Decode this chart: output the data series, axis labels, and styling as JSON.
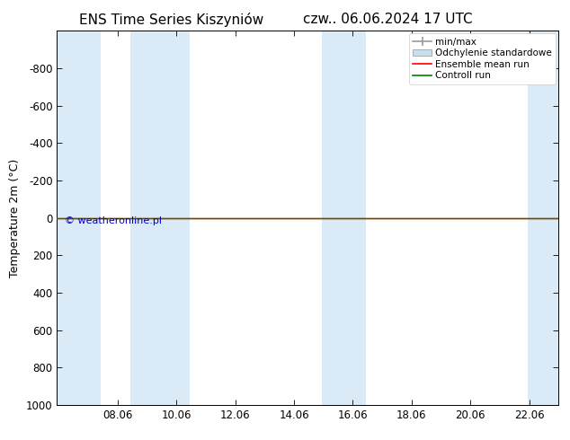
{
  "title_left": "ENS Time Series Kiszyniów",
  "title_right": "czw.. 06.06.2024 17 UTC",
  "ylabel": "Temperature 2m (°C)",
  "watermark": "© weatheronline.pl",
  "watermark_color": "#0000cc",
  "xlim_start": 6.0,
  "xlim_end": 23.06,
  "ylim_bottom": 1000,
  "ylim_top": -1000,
  "yticks": [
    -800,
    -600,
    -400,
    -200,
    0,
    200,
    400,
    600,
    800,
    1000
  ],
  "xticks": [
    8.06,
    10.06,
    12.06,
    14.06,
    16.06,
    18.06,
    20.06,
    22.06
  ],
  "xtick_labels": [
    "08.06",
    "10.06",
    "12.06",
    "14.06",
    "16.06",
    "18.06",
    "20.06",
    "22.06"
  ],
  "background_color": "#ffffff",
  "plot_bg_color": "#ffffff",
  "shaded_bands": [
    {
      "x_start": 6.0,
      "x_end": 7.5,
      "color": "#daeaf7"
    },
    {
      "x_start": 8.5,
      "x_end": 10.5,
      "color": "#daeaf7"
    },
    {
      "x_start": 15.0,
      "x_end": 16.5,
      "color": "#daeaf7"
    },
    {
      "x_start": 22.0,
      "x_end": 23.06,
      "color": "#daeaf7"
    }
  ],
  "hline_y": 0,
  "hline_color_ensemble": "#ff0000",
  "hline_color_control": "#008000",
  "legend_items": [
    {
      "label": "min/max",
      "color": "#aaaaaa",
      "style": "errbar"
    },
    {
      "label": "Odchylenie standardowe",
      "color": "#ccdeed",
      "style": "box"
    },
    {
      "label": "Ensemble mean run",
      "color": "#ff0000",
      "style": "line"
    },
    {
      "label": "Controll run",
      "color": "#008000",
      "style": "line"
    }
  ],
  "font_family": "DejaVu Sans",
  "title_fontsize": 11,
  "axis_fontsize": 9,
  "tick_fontsize": 8.5,
  "legend_fontsize": 7.5
}
